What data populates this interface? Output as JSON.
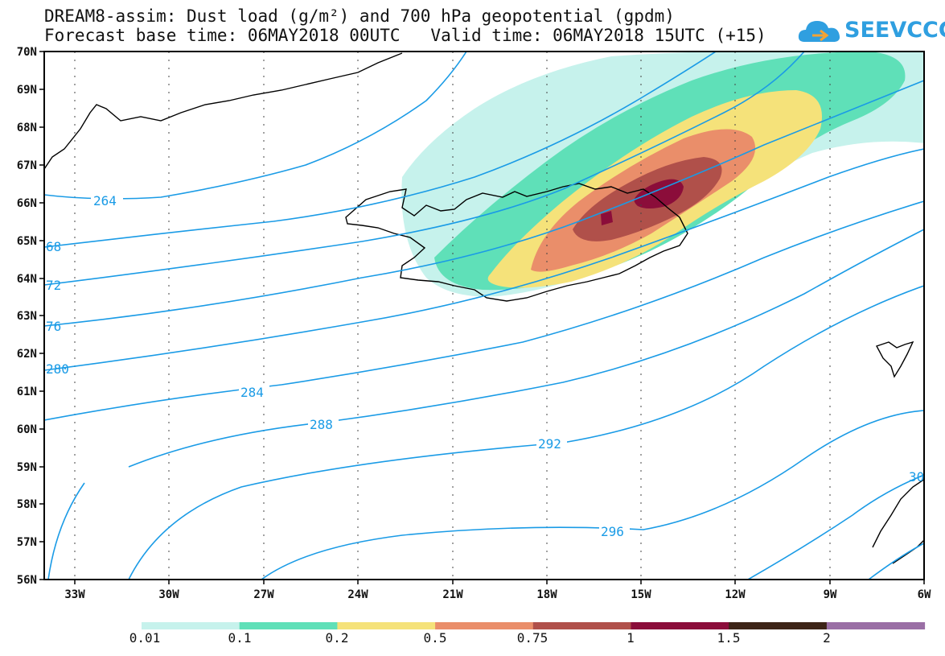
{
  "title": {
    "line1": "DREAM8-assim: Dust load (g/m²) and 700 hPa geopotential (gpdm)",
    "line2": "Forecast base time: 06MAY2018 00UTC   Valid time: 06MAY2018 15UTC (+15)"
  },
  "logo": {
    "text": "SEEVCCC",
    "icon": "cloud-icon"
  },
  "axes": {
    "lat_labels": [
      "70N",
      "69N",
      "68N",
      "67N",
      "66N",
      "65N",
      "64N",
      "63N",
      "62N",
      "61N",
      "60N",
      "59N",
      "58N",
      "57N",
      "56N"
    ],
    "lon_labels": [
      "33W",
      "30W",
      "27W",
      "24W",
      "21W",
      "18W",
      "15W",
      "12W",
      "9W",
      "6W"
    ]
  },
  "contour_labels": {
    "c264": "264",
    "c268": "68",
    "c272": "72",
    "c276": "76",
    "c280": "280",
    "c284": "284",
    "c288": "288",
    "c292": "292",
    "c296": "296",
    "c300": "30"
  },
  "colorbar": {
    "labels": [
      "0.01",
      "0.1",
      "0.2",
      "0.5",
      "0.75",
      "1",
      "1.5",
      "2"
    ],
    "colors": [
      "#c6f2ec",
      "#5fe0b8",
      "#f5e27a",
      "#ea8e6a",
      "#b0504a",
      "#8b0d3a",
      "#3d2417",
      "#9a6fa5"
    ]
  },
  "colors": {
    "contour": "#1a9be6",
    "coast": "#000000"
  }
}
